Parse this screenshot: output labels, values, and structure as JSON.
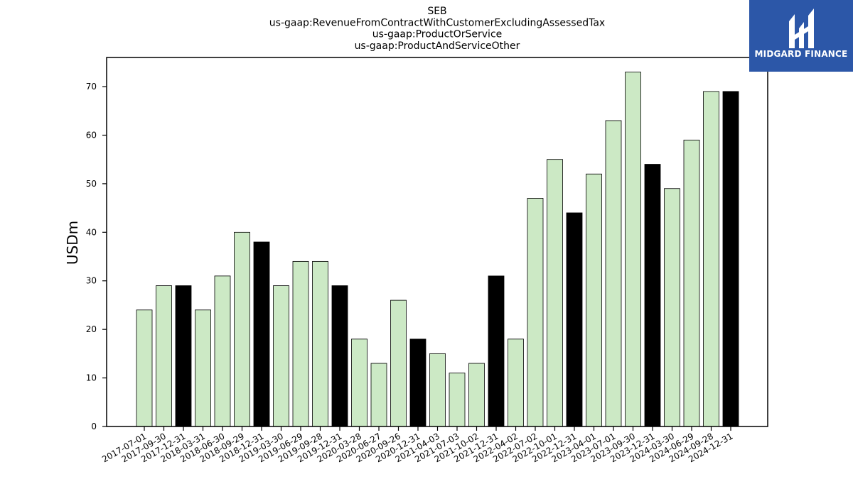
{
  "chart_data": {
    "type": "bar",
    "title": [
      "SEB",
      "us-gaap:RevenueFromContractWithCustomerExcludingAssessedTax",
      "us-gaap:ProductOrService",
      "us-gaap:ProductAndServiceOther"
    ],
    "xlabel": "",
    "ylabel": "USDm",
    "ylim": [
      0,
      76
    ],
    "yticks": [
      0,
      10,
      20,
      30,
      40,
      50,
      60,
      70
    ],
    "grid": false,
    "categories": [
      "2017-07-01",
      "2017-09-30",
      "2017-12-31",
      "2018-03-31",
      "2018-06-30",
      "2018-09-29",
      "2018-12-31",
      "2019-03-30",
      "2019-06-29",
      "2019-09-28",
      "2019-12-31",
      "2020-03-28",
      "2020-06-27",
      "2020-09-26",
      "2020-12-31",
      "2021-04-03",
      "2021-07-03",
      "2021-10-02",
      "2021-12-31",
      "2022-04-02",
      "2022-07-02",
      "2022-10-01",
      "2022-12-31",
      "2023-04-01",
      "2023-07-01",
      "2023-09-30",
      "2023-12-31",
      "2024-03-30",
      "2024-06-29",
      "2024-09-28",
      "2024-12-31"
    ],
    "values": [
      24,
      29,
      29,
      24,
      31,
      40,
      38,
      29,
      34,
      34,
      29,
      18,
      13,
      26,
      18,
      15,
      11,
      13,
      31,
      18,
      47,
      55,
      44,
      52,
      63,
      73,
      54,
      49,
      59,
      69,
      69
    ],
    "year_end": [
      false,
      false,
      true,
      false,
      false,
      false,
      true,
      false,
      false,
      false,
      true,
      false,
      false,
      false,
      true,
      false,
      false,
      false,
      true,
      false,
      false,
      false,
      true,
      false,
      false,
      false,
      true,
      false,
      false,
      false,
      true
    ],
    "colors": {
      "quarter": "#cce9c5",
      "year_end": "#000000",
      "edge": "#000000"
    }
  },
  "logo": {
    "text": "MIDGARD FINANCE",
    "background": "#2c57a8"
  }
}
